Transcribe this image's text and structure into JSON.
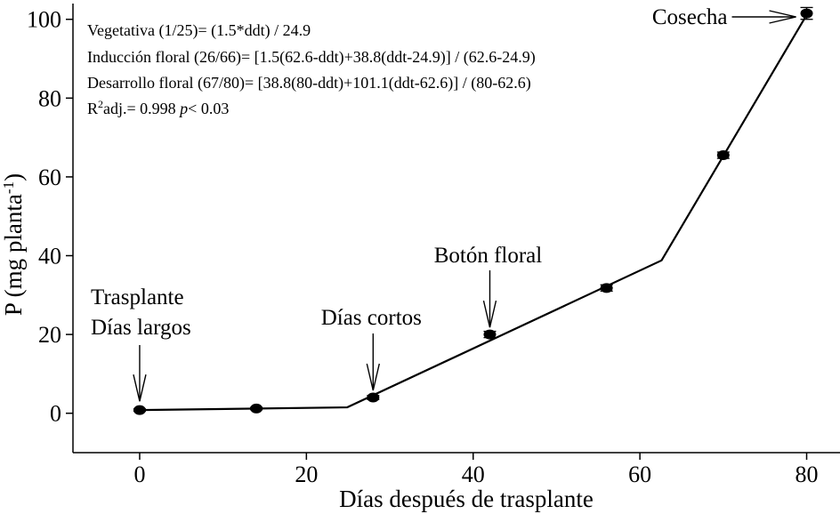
{
  "chart_data": {
    "type": "scatter",
    "xlabel": "Días después de trasplante",
    "ylabel": "P (mg planta",
    "ylabel_sup": "-1",
    "ylabel_close": ")",
    "xlim": [
      -8,
      84
    ],
    "ylim": [
      -10,
      104
    ],
    "xticks": [
      0,
      20,
      40,
      60,
      80
    ],
    "yticks": [
      0,
      20,
      40,
      60,
      80,
      100
    ],
    "grid": false,
    "series": [
      {
        "kind": "observed",
        "points": [
          {
            "x": 0,
            "y": 0.8,
            "err": 0.3
          },
          {
            "x": 14,
            "y": 1.2,
            "err": 0.3
          },
          {
            "x": 28,
            "y": 4.0,
            "err": 0.5
          },
          {
            "x": 42,
            "y": 20.0,
            "err": 0.8
          },
          {
            "x": 56,
            "y": 31.8,
            "err": 0.8
          },
          {
            "x": 70,
            "y": 65.5,
            "err": 0.8
          },
          {
            "x": 80,
            "y": 101.5,
            "err": 1.5
          }
        ]
      },
      {
        "kind": "fitted",
        "points": [
          {
            "x": 0,
            "y": 0.8
          },
          {
            "x": 24.9,
            "y": 1.5
          },
          {
            "x": 62.6,
            "y": 38.8
          },
          {
            "x": 80,
            "y": 101.1
          }
        ]
      }
    ],
    "equations": [
      {
        "text": "Vegetativa (1/25)= (1.5*ddt) / 24.9"
      },
      {
        "text": "Inducción floral (26/66)= [1.5(62.6-ddt)+38.8(ddt-24.9)] / (62.6-24.9)"
      },
      {
        "text": "Desarrollo floral (67/80)= [38.8(80-ddt)+101.1(ddt-62.6)] / (80-62.6)"
      }
    ],
    "r2": {
      "r": "R",
      "sup": "2",
      "mid": "adj.= 0.998 ",
      "p": "p",
      "tail": "< 0.03"
    },
    "annotations": [
      {
        "id": "trasplante",
        "lines": [
          "Trasplante",
          "Días largos"
        ],
        "x": 0,
        "y": 0.8
      },
      {
        "id": "dias-cortos",
        "lines": [
          "Días cortos"
        ],
        "x": 28,
        "y": 4.0
      },
      {
        "id": "boton-floral",
        "lines": [
          "Botón floral"
        ],
        "x": 42,
        "y": 20.0
      },
      {
        "id": "cosecha",
        "lines": [
          "Cosecha"
        ],
        "x": 80,
        "y": 101.5
      }
    ]
  }
}
